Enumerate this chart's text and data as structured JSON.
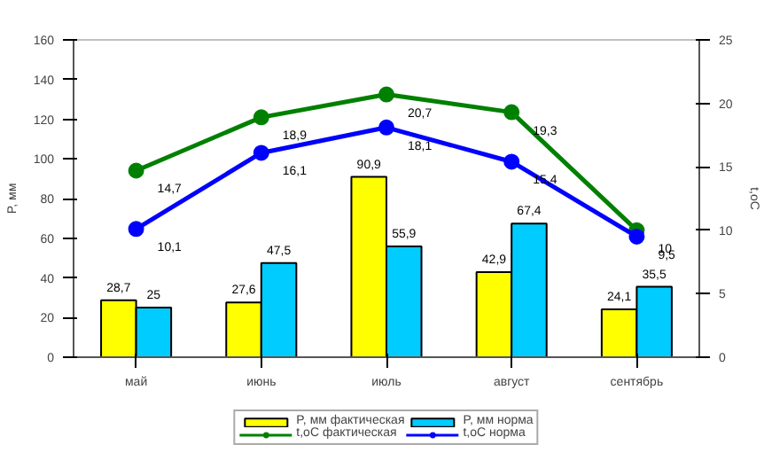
{
  "chart_data": {
    "type": "bar",
    "ylabel": "P, мм",
    "y2label": "t,oC",
    "categories": [
      "май",
      "июнь",
      "июль",
      "август",
      "сентябрь"
    ],
    "series": [
      {
        "name": "P, мм фактическая",
        "color": "#ffff00",
        "values": [
          28.7,
          27.6,
          90.9,
          42.9,
          24.1
        ],
        "value_labels": [
          "28,7",
          "27,6",
          "90,9",
          "42,9",
          "24,1"
        ]
      },
      {
        "name": "P, мм норма",
        "color": "#00ccff",
        "values": [
          25,
          47.5,
          55.9,
          67.4,
          35.5
        ],
        "value_labels": [
          "25",
          "47,5",
          "55,9",
          "67,4",
          "35,5"
        ]
      },
      {
        "name": "t,oC фактическая",
        "type": "line",
        "axis": "y2",
        "color": "#008000",
        "values": [
          14.7,
          18.9,
          20.7,
          19.3,
          10
        ],
        "value_labels": [
          "14,7",
          "18,9",
          "20,7",
          "19,3",
          "10"
        ]
      },
      {
        "name": "t,oC норма",
        "type": "line",
        "axis": "y2",
        "color": "#0000ff",
        "values": [
          10.1,
          16.1,
          18.1,
          15.4,
          9.5
        ],
        "value_labels": [
          "10,1",
          "16,1",
          "18,1",
          "15,4",
          "9,5"
        ]
      }
    ],
    "ylim": [
      0,
      160
    ],
    "yticks": [
      0,
      20,
      40,
      60,
      80,
      100,
      120,
      140,
      160
    ],
    "y2lim": [
      0,
      25
    ],
    "y2ticks": [
      0,
      5,
      10,
      15,
      20,
      25
    ],
    "marker": "circle",
    "grid": false,
    "legend": "bottom"
  }
}
